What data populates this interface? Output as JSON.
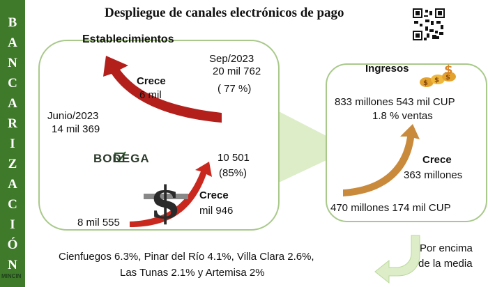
{
  "sidebar": {
    "letters": [
      "B",
      "A",
      "N",
      "C",
      "A",
      "R",
      "I",
      "Z",
      "A",
      "C",
      "I",
      "Ó",
      "N"
    ]
  },
  "title": "Despliegue de canales electrónicos de pago",
  "establecimientos": {
    "heading": "Establecimientos",
    "sep_label": "Sep/2023",
    "sep_value": "20 mil 762",
    "sep_pct": "( 77 %)",
    "crece_label": "Crece",
    "crece_value": "6 mil",
    "jun_label": "Junio/2023",
    "jun_value": "14 mil 369",
    "bodega_logo": "BODEGA",
    "bodega_new_value": "10 501",
    "bodega_new_pct": "(85%)",
    "bodega_crece_label": "Crece",
    "bodega_crece_value": "mil 946",
    "bodega_old_value": "8 mil 555"
  },
  "ingresos": {
    "heading": "Ingresos",
    "top_value": "833 millones 543 mil  CUP",
    "top_pct": "1.8 %  ventas",
    "crece_label": "Crece",
    "crece_value": "363 millones",
    "bottom_value": "470 millones 174 mil CUP"
  },
  "footer": {
    "provinces_line1": "Cienfuegos 6.3%, Pinar del Río 4.1%, Villa Clara 2.6%,",
    "provinces_line2": "Las Tunas 2.1% y Artemisa 2%",
    "note_line1": "Por encima",
    "note_line2": "de la media",
    "brand": "MINCIN"
  },
  "colors": {
    "sidebar": "#3f7a2a",
    "box_border": "#a8c98a",
    "arrow_red": "#b3201c",
    "arrow_orange": "#c98a3c",
    "connector": "#dcedc8"
  }
}
